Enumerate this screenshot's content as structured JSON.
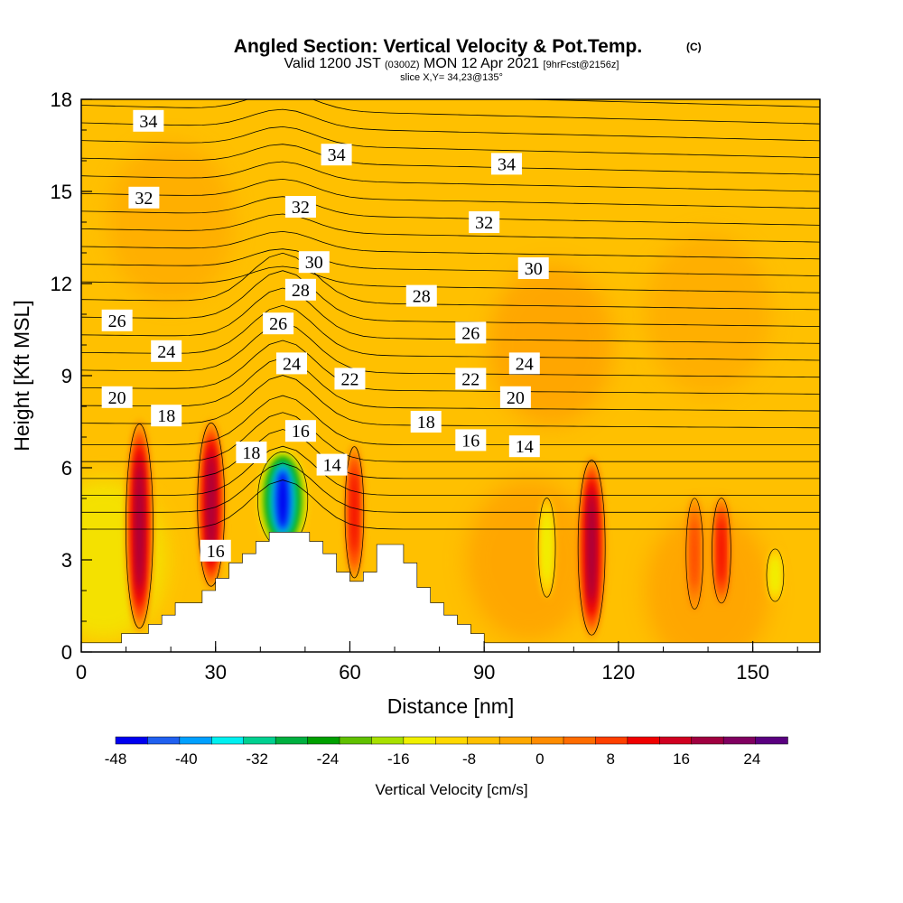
{
  "chart_data": {
    "type": "heatmap",
    "title": "Angled Section: Vertical Velocity & Pot.Temp.",
    "title_units": "(C)",
    "subtitle": {
      "prefix": "Valid 1200 JST",
      "utc": "(0300Z)",
      "date": "MON 12 Apr 2021",
      "forecast": "[9hrFcst@2156z]"
    },
    "slice_label": "slice X,Y= 34,23@135°",
    "xlabel": "Distance [nm]",
    "ylabel": "Height [Kft MSL]",
    "xlim": [
      0,
      165
    ],
    "ylim": [
      0,
      18
    ],
    "x_ticks": [
      0,
      30,
      60,
      90,
      120,
      150
    ],
    "y_ticks": [
      0,
      3,
      6,
      9,
      12,
      15,
      18
    ],
    "colorbar": {
      "label": "Vertical Velocity [cm/s]",
      "min": -48,
      "max": 28,
      "step": 4,
      "tick_labels": [
        "-48",
        "-40",
        "-32",
        "-24",
        "-16",
        "-8",
        "0",
        "8",
        "16",
        "24"
      ],
      "colors": [
        "#0000f0",
        "#2060f0",
        "#00a0ff",
        "#00f0f0",
        "#00d090",
        "#00b040",
        "#00a000",
        "#60c000",
        "#a8e000",
        "#f0f000",
        "#ffd800",
        "#ffc000",
        "#ffa800",
        "#ff8c00",
        "#ff6c00",
        "#ff4000",
        "#f00000",
        "#d00020",
        "#a00040",
        "#800060",
        "#5a0080"
      ]
    },
    "isentrope_labels": [
      "34",
      "34",
      "34",
      "32",
      "32",
      "32",
      "30",
      "30",
      "28",
      "28",
      "26",
      "26",
      "26",
      "24",
      "24",
      "24",
      "22",
      "22",
      "20",
      "20",
      "18",
      "18",
      "18",
      "16",
      "16",
      "16",
      "14",
      "14"
    ],
    "updraft_cores": [
      {
        "x": 13,
        "z_bottom": 0.6,
        "z_top": 7.6,
        "peak_cm_s": 26
      },
      {
        "x": 29,
        "z_bottom": 2.0,
        "z_top": 7.6,
        "peak_cm_s": 26
      },
      {
        "x": 61,
        "z_bottom": 2.3,
        "z_top": 6.8,
        "peak_cm_s": 18
      },
      {
        "x": 114,
        "z_bottom": 0.4,
        "z_top": 6.4,
        "peak_cm_s": 26
      },
      {
        "x": 137,
        "z_bottom": 1.3,
        "z_top": 5.1,
        "peak_cm_s": 14
      },
      {
        "x": 143,
        "z_bottom": 1.5,
        "z_top": 5.1,
        "peak_cm_s": 18
      }
    ],
    "downdraft_cores": [
      {
        "x": 45,
        "z_bottom": 3.3,
        "z_top": 6.6,
        "peak_cm_s": -48
      },
      {
        "x": 104,
        "z_bottom": 1.7,
        "z_top": 5.1,
        "peak_cm_s": -12
      },
      {
        "x": 155,
        "z_bottom": 1.6,
        "z_top": 3.4,
        "peak_cm_s": -12
      }
    ],
    "terrain_profile_kft": [
      [
        0,
        0.3
      ],
      [
        9,
        0.3
      ],
      [
        9,
        0.6
      ],
      [
        15,
        0.6
      ],
      [
        15,
        0.9
      ],
      [
        18,
        0.9
      ],
      [
        18,
        1.2
      ],
      [
        21,
        1.2
      ],
      [
        21,
        1.6
      ],
      [
        27,
        1.6
      ],
      [
        27,
        2.0
      ],
      [
        30,
        2.0
      ],
      [
        30,
        2.4
      ],
      [
        33,
        2.4
      ],
      [
        33,
        2.9
      ],
      [
        36,
        2.9
      ],
      [
        36,
        3.2
      ],
      [
        39,
        3.2
      ],
      [
        39,
        3.6
      ],
      [
        42,
        3.6
      ],
      [
        42,
        3.9
      ],
      [
        51,
        3.9
      ],
      [
        51,
        3.6
      ],
      [
        54,
        3.6
      ],
      [
        54,
        3.2
      ],
      [
        57,
        3.2
      ],
      [
        57,
        2.6
      ],
      [
        60,
        2.6
      ],
      [
        60,
        2.3
      ],
      [
        63,
        2.3
      ],
      [
        63,
        2.6
      ],
      [
        66,
        2.6
      ],
      [
        66,
        3.5
      ],
      [
        72,
        3.5
      ],
      [
        72,
        2.9
      ],
      [
        75,
        2.9
      ],
      [
        75,
        2.1
      ],
      [
        78,
        2.1
      ],
      [
        78,
        1.6
      ],
      [
        81,
        1.6
      ],
      [
        81,
        1.2
      ],
      [
        84,
        1.2
      ],
      [
        84,
        0.9
      ],
      [
        87,
        0.9
      ],
      [
        87,
        0.6
      ],
      [
        90,
        0.6
      ],
      [
        90,
        0.3
      ],
      [
        165,
        0.3
      ]
    ]
  }
}
